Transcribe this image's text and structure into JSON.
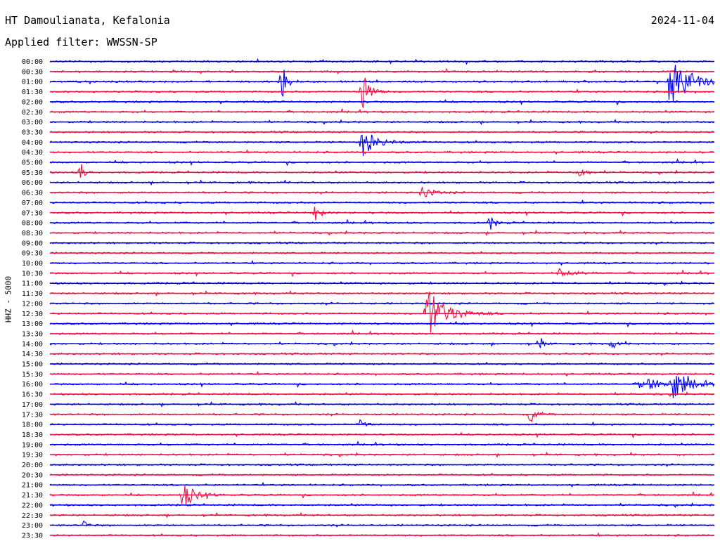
{
  "header": {
    "station": "HT Damoulianata, Kefalonia",
    "date": "2024-11-04",
    "filter": "Applied filter: WWSSN-SP"
  },
  "axis": {
    "ylabel": "HHZ - 5000"
  },
  "chart_data": {
    "type": "line",
    "ylabel": "HHZ - 5000",
    "row_labels": [
      "00:00",
      "00:30",
      "01:00",
      "01:30",
      "02:00",
      "02:30",
      "03:00",
      "03:30",
      "04:00",
      "04:30",
      "05:00",
      "05:30",
      "06:00",
      "06:30",
      "07:00",
      "07:30",
      "08:00",
      "08:30",
      "09:00",
      "09:30",
      "10:00",
      "10:30",
      "11:00",
      "11:30",
      "12:00",
      "12:30",
      "13:00",
      "13:30",
      "14:00",
      "14:30",
      "15:00",
      "15:30",
      "16:00",
      "16:30",
      "17:00",
      "17:30",
      "18:00",
      "18:30",
      "19:00",
      "19:30",
      "20:00",
      "20:30",
      "21:00",
      "21:30",
      "22:00",
      "22:30",
      "23:00",
      "23:30"
    ],
    "trace_colors": [
      "#0000ee",
      "#ee1144"
    ],
    "events": [
      {
        "row": "01:00",
        "minute": 10.4,
        "amplitude": 1.0,
        "duration_min": 0.4
      },
      {
        "row": "01:30",
        "minute": 14.1,
        "amplitude": 1.0,
        "duration_min": 0.5
      },
      {
        "row": "01:00",
        "minute": 28.0,
        "amplitude": 1.0,
        "duration_min": 1.6
      },
      {
        "row": "04:00",
        "minute": 14.1,
        "amplitude": 0.5,
        "duration_min": 1.2
      },
      {
        "row": "05:30",
        "minute": 1.4,
        "amplitude": 0.35,
        "duration_min": 0.3
      },
      {
        "row": "05:30",
        "minute": 23.9,
        "amplitude": 0.45,
        "duration_min": 0.4
      },
      {
        "row": "06:30",
        "minute": 16.8,
        "amplitude": 0.2,
        "duration_min": 0.9
      },
      {
        "row": "07:30",
        "minute": 12.0,
        "amplitude": 0.3,
        "duration_min": 0.4
      },
      {
        "row": "08:00",
        "minute": 19.9,
        "amplitude": 0.3,
        "duration_min": 0.4
      },
      {
        "row": "10:30",
        "minute": 23.0,
        "amplitude": 0.2,
        "duration_min": 1.0
      },
      {
        "row": "12:30",
        "minute": 17.0,
        "amplitude": 1.0,
        "duration_min": 1.5
      },
      {
        "row": "14:00",
        "minute": 22.1,
        "amplitude": 0.25,
        "duration_min": 0.3
      },
      {
        "row": "14:00",
        "minute": 25.4,
        "amplitude": 0.25,
        "duration_min": 0.3
      },
      {
        "row": "16:00",
        "minute": 26.7,
        "amplitude": 0.3,
        "duration_min": 1.6
      },
      {
        "row": "16:00",
        "minute": 28.1,
        "amplitude": 0.55,
        "duration_min": 1.2
      },
      {
        "row": "17:30",
        "minute": 21.7,
        "amplitude": 0.3,
        "duration_min": 0.5
      },
      {
        "row": "18:00",
        "minute": 14.0,
        "amplitude": 0.15,
        "duration_min": 0.5
      },
      {
        "row": "21:30",
        "minute": 6.0,
        "amplitude": 0.45,
        "duration_min": 1.0
      },
      {
        "row": "23:00",
        "minute": 1.6,
        "amplitude": 0.25,
        "duration_min": 0.2
      }
    ]
  }
}
